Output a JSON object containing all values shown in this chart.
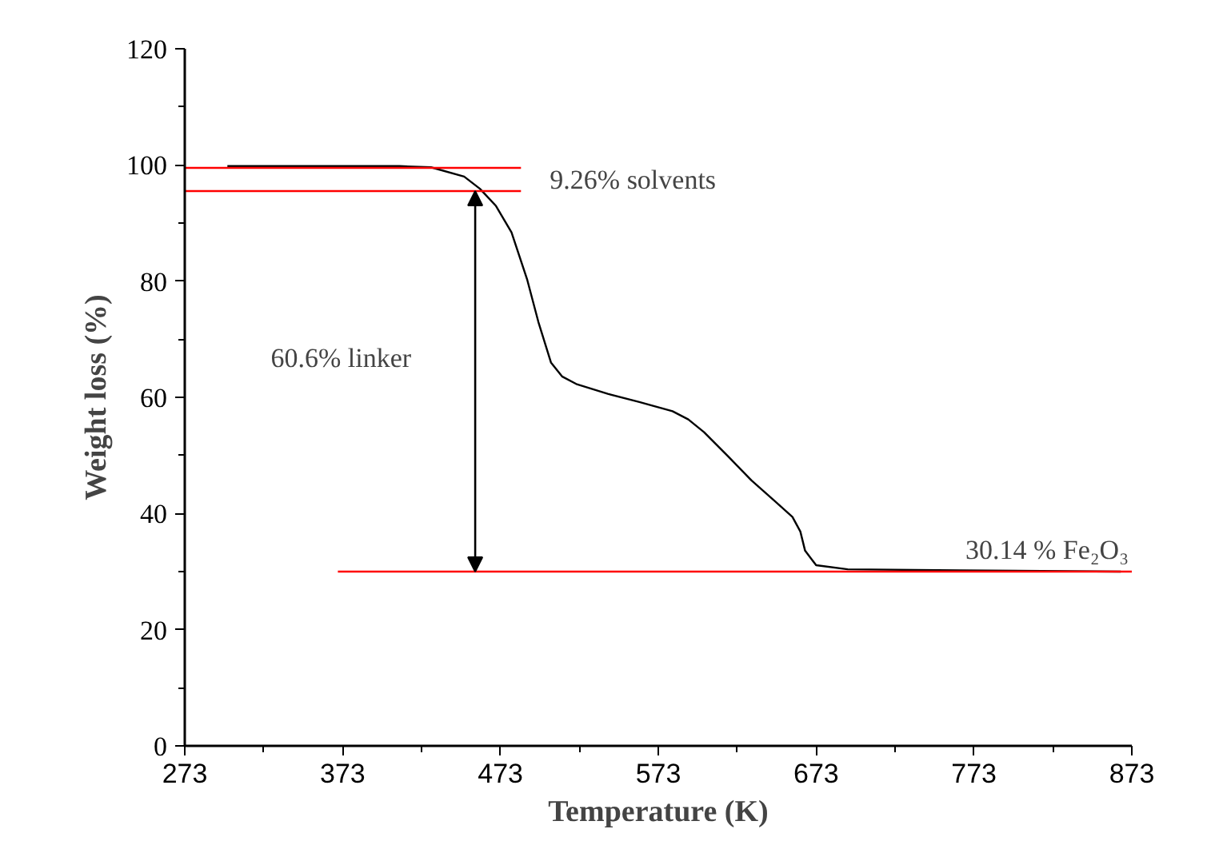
{
  "chart_data": {
    "type": "line",
    "xlabel": "Temperature (K)",
    "ylabel": "Weight loss (%)",
    "xlim": [
      273,
      873
    ],
    "xticks": [
      273,
      373,
      473,
      573,
      673,
      773,
      873
    ],
    "ylim": [
      0,
      120
    ],
    "yticks": [
      0,
      20,
      40,
      60,
      80,
      100,
      120
    ],
    "grid": false,
    "marker": "none",
    "line_style": "solid",
    "series": [
      {
        "color": "#000000",
        "x": [
          300,
          358,
          409,
          429,
          450,
          460,
          470,
          480,
          490,
          497,
          505,
          512,
          521,
          541,
          561,
          582,
          592,
          602,
          617,
          632,
          647,
          658,
          663,
          666,
          673,
          693,
          764,
          866
        ],
        "values": [
          99.8,
          99.8,
          99.8,
          99.6,
          98,
          95.9,
          93,
          88.4,
          80.2,
          73,
          66,
          63.6,
          62.3,
          60.6,
          59.2,
          57.6,
          56.2,
          54,
          49.9,
          45.7,
          42.1,
          39.4,
          36.9,
          33.6,
          31.1,
          30.4,
          30.2,
          30.0
        ]
      },
      {
        "color": "#ff0000",
        "x": [
          273,
          486
        ],
        "values": [
          99.5,
          99.5
        ]
      },
      {
        "color": "#ff0000",
        "x": [
          273,
          486
        ],
        "values": [
          95.5,
          95.5
        ]
      },
      {
        "color": "#ff0000",
        "x": [
          370,
          873
        ],
        "values": [
          30,
          30
        ]
      }
    ],
    "annotations": [
      "9.26% solvents",
      "60.6% linker",
      "30.14 % Fe₂O₃"
    ]
  }
}
